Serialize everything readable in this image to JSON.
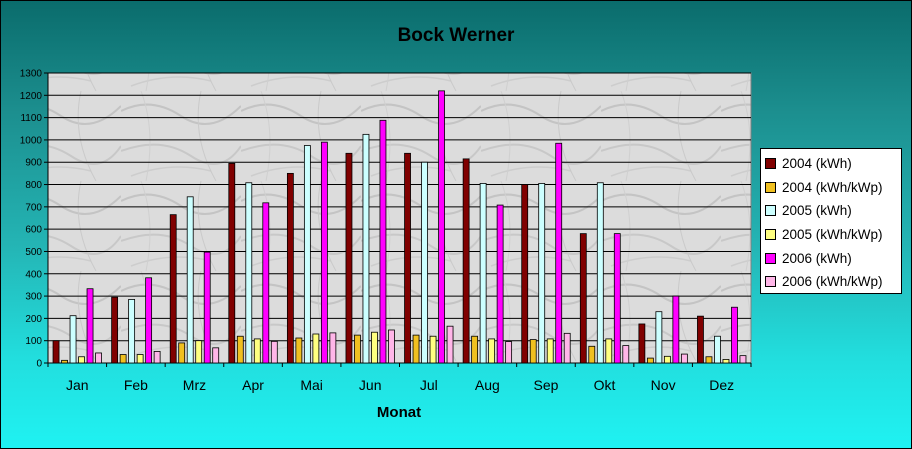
{
  "chart_data": {
    "type": "bar",
    "title": "Bock Werner",
    "xlabel": "Monat",
    "ylabel": "",
    "ylim": [
      0,
      1300
    ],
    "yticks": [
      0,
      100,
      200,
      300,
      400,
      500,
      600,
      700,
      800,
      900,
      1000,
      1100,
      1200,
      1300
    ],
    "grid": true,
    "legend_position": "right",
    "categories": [
      "Jan",
      "Feb",
      "Mrz",
      "Apr",
      "Mai",
      "Jun",
      "Jul",
      "Aug",
      "Sep",
      "Okt",
      "Nov",
      "Dez"
    ],
    "series": [
      {
        "name": "2004 (kWh)",
        "color": "#800000",
        "values": [
          100,
          295,
          665,
          895,
          850,
          940,
          940,
          915,
          800,
          580,
          175,
          210
        ]
      },
      {
        "name": "2004 (kWh/kWp)",
        "color": "#f0c020",
        "values": [
          12,
          38,
          90,
          120,
          112,
          125,
          125,
          120,
          105,
          75,
          22,
          28
        ]
      },
      {
        "name": "2005 (kWh)",
        "color": "#ccffff",
        "values": [
          212,
          285,
          745,
          808,
          975,
          1025,
          900,
          805,
          805,
          808,
          230,
          120
        ]
      },
      {
        "name": "2005 (kWh/kWp)",
        "color": "#ffff80",
        "values": [
          28,
          38,
          100,
          108,
          130,
          138,
          120,
          108,
          108,
          108,
          30,
          16
        ]
      },
      {
        "name": "2006 (kWh)",
        "color": "#ff00ff",
        "values": [
          333,
          382,
          497,
          718,
          990,
          1088,
          1220,
          708,
          985,
          580,
          300,
          250
        ]
      },
      {
        "name": "2006 (kWh/kWp)",
        "color": "#ffb6e8",
        "values": [
          45,
          52,
          68,
          97,
          135,
          148,
          165,
          96,
          133,
          78,
          40,
          33
        ]
      }
    ]
  }
}
